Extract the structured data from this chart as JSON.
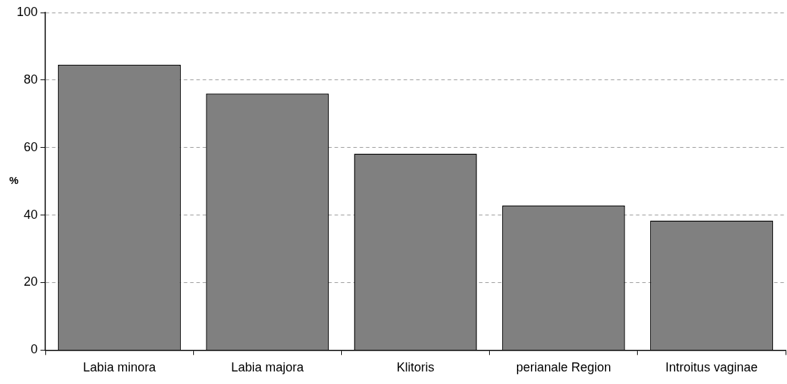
{
  "chart_data": {
    "type": "bar",
    "ylabel": "%",
    "categories": [
      "Labia minora",
      "Labia majora",
      "Klitoris",
      "perianale Region",
      "Introitus vaginae"
    ],
    "values": [
      84.5,
      76,
      58.2,
      42.8,
      38.4
    ],
    "color": "#808080",
    "ylim": [
      0,
      100
    ],
    "yticks": [
      0,
      20,
      40,
      60,
      80,
      100
    ],
    "grid": "y",
    "legend": false
  }
}
